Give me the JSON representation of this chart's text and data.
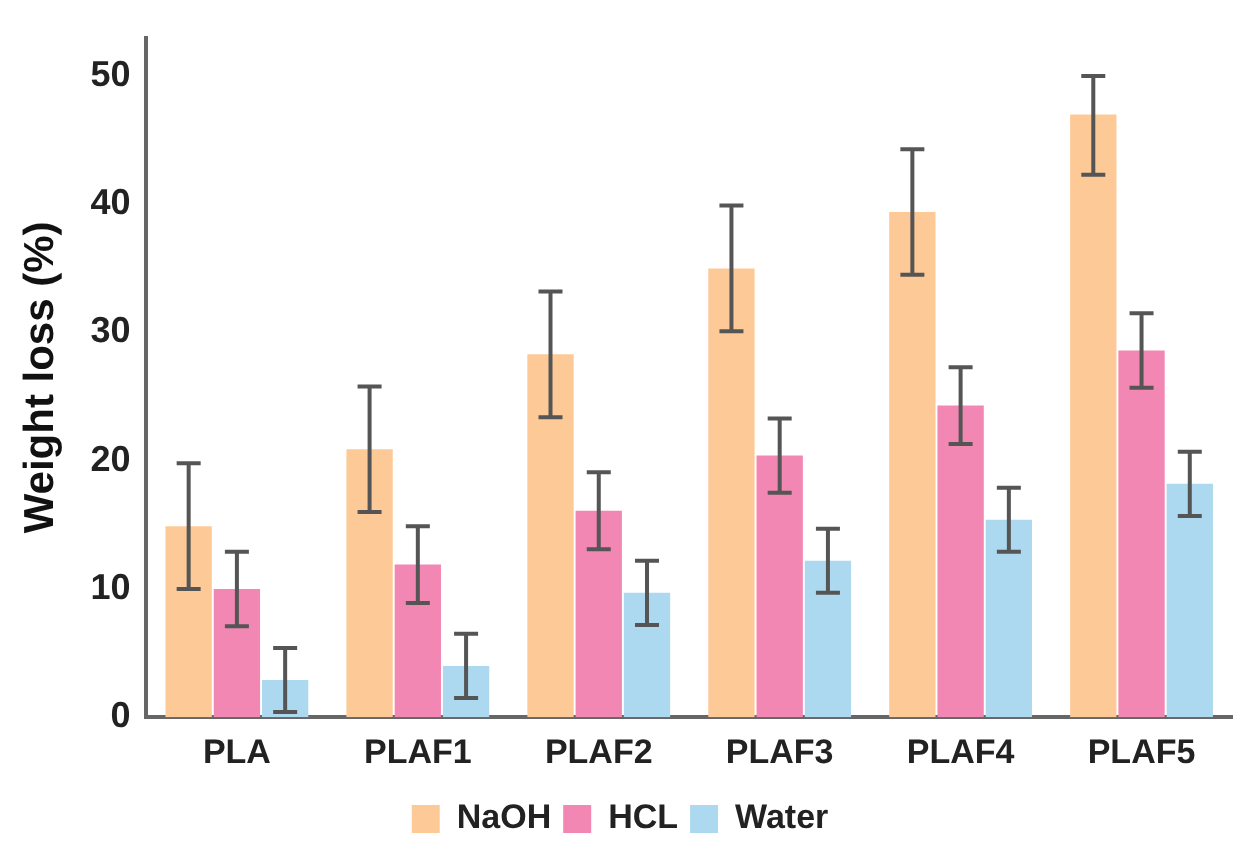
{
  "chart_data": {
    "type": "bar",
    "ylabel": "Weight loss (%)",
    "categories": [
      "PLA",
      "PLAF1",
      "PLAF2",
      "PLAF3",
      "PLAF4",
      "PLAF5"
    ],
    "series": [
      {
        "name": "NaOH",
        "color": "#fdca97",
        "values": [
          14.9,
          20.9,
          28.3,
          35.0,
          39.4,
          47.0
        ],
        "errors": [
          4.9,
          4.9,
          4.9,
          4.9,
          4.9,
          [
            42.3,
            50.0
          ]
        ]
      },
      {
        "name": "HCL",
        "color": "#f287b3",
        "values": [
          10.0,
          11.9,
          16.1,
          20.4,
          24.3,
          28.6
        ],
        "errors": [
          2.9,
          3.0,
          3.0,
          2.9,
          3.0,
          2.9
        ]
      },
      {
        "name": "Water",
        "color": "#acd9ef",
        "values": [
          2.9,
          4.0,
          9.7,
          12.2,
          15.4,
          18.2
        ],
        "errors": [
          2.5,
          2.5,
          2.5,
          2.5,
          2.5,
          2.5
        ]
      }
    ],
    "ylim": [
      0,
      53
    ],
    "yticks": [
      0,
      10,
      20,
      30,
      40,
      50
    ],
    "grid": false,
    "legend": "bottom"
  }
}
